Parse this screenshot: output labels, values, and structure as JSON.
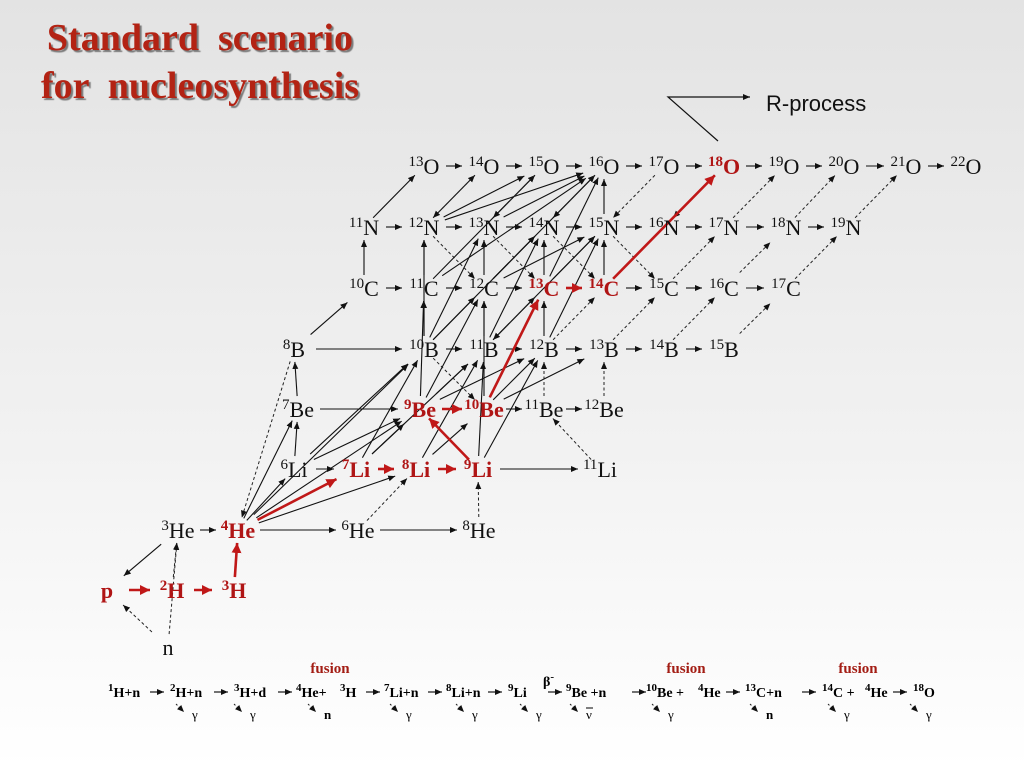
{
  "title": {
    "line1": "Standard  scenario",
    "line2": "for  nucleosynthesis"
  },
  "r_process_label": "R-process",
  "nuclides": [
    {
      "mass": "13",
      "sym": "O",
      "red": false
    },
    {
      "mass": "14",
      "sym": "O",
      "red": false
    },
    {
      "mass": "15",
      "sym": "O",
      "red": false
    },
    {
      "mass": "16",
      "sym": "O",
      "red": false
    },
    {
      "mass": "17",
      "sym": "O",
      "red": false
    },
    {
      "mass": "18",
      "sym": "O",
      "red": true
    },
    {
      "mass": "19",
      "sym": "O",
      "red": false
    },
    {
      "mass": "20",
      "sym": "O",
      "red": false
    },
    {
      "mass": "21",
      "sym": "O",
      "red": false
    },
    {
      "mass": "22",
      "sym": "O",
      "red": false
    },
    {
      "mass": "11",
      "sym": "N",
      "red": false
    },
    {
      "mass": "12",
      "sym": "N",
      "red": false
    },
    {
      "mass": "13",
      "sym": "N",
      "red": false
    },
    {
      "mass": "14",
      "sym": "N",
      "red": false
    },
    {
      "mass": "15",
      "sym": "N",
      "red": false
    },
    {
      "mass": "16",
      "sym": "N",
      "red": false
    },
    {
      "mass": "17",
      "sym": "N",
      "red": false
    },
    {
      "mass": "18",
      "sym": "N",
      "red": false
    },
    {
      "mass": "19",
      "sym": "N",
      "red": false
    },
    {
      "mass": "10",
      "sym": "C",
      "red": false
    },
    {
      "mass": "11",
      "sym": "C",
      "red": false
    },
    {
      "mass": "12",
      "sym": "C",
      "red": false
    },
    {
      "mass": "13",
      "sym": "C",
      "red": true
    },
    {
      "mass": "14",
      "sym": "C",
      "red": true
    },
    {
      "mass": "15",
      "sym": "C",
      "red": false
    },
    {
      "mass": "16",
      "sym": "C",
      "red": false
    },
    {
      "mass": "17",
      "sym": "C",
      "red": false
    },
    {
      "mass": "8",
      "sym": "B",
      "red": false
    },
    {
      "mass": "10",
      "sym": "B",
      "red": false
    },
    {
      "mass": "11",
      "sym": "B",
      "red": false
    },
    {
      "mass": "12",
      "sym": "B",
      "red": false
    },
    {
      "mass": "13",
      "sym": "B",
      "red": false
    },
    {
      "mass": "14",
      "sym": "B",
      "red": false
    },
    {
      "mass": "15",
      "sym": "B",
      "red": false
    },
    {
      "mass": "7",
      "sym": "Be",
      "red": false
    },
    {
      "mass": "9",
      "sym": "Be",
      "red": true
    },
    {
      "mass": "10",
      "sym": "Be",
      "red": true
    },
    {
      "mass": "11",
      "sym": "Be",
      "red": false
    },
    {
      "mass": "12",
      "sym": "Be",
      "red": false
    },
    {
      "mass": "6",
      "sym": "Li",
      "red": false
    },
    {
      "mass": "7",
      "sym": "Li",
      "red": true
    },
    {
      "mass": "8",
      "sym": "Li",
      "red": true
    },
    {
      "mass": "9",
      "sym": "Li",
      "red": true
    },
    {
      "mass": "11",
      "sym": "Li",
      "red": false
    },
    {
      "mass": "3",
      "sym": "He",
      "red": false
    },
    {
      "mass": "4",
      "sym": "He",
      "red": true
    },
    {
      "mass": "6",
      "sym": "He",
      "red": false
    },
    {
      "mass": "8",
      "sym": "He",
      "red": false
    },
    {
      "mass": "",
      "sym": "p",
      "red": true
    },
    {
      "mass": "2",
      "sym": "H",
      "red": true
    },
    {
      "mass": "3",
      "sym": "H",
      "red": true
    },
    {
      "mass": "",
      "sym": "n",
      "red": false
    }
  ],
  "chain": {
    "fusion_label": "fusion",
    "beta_label": "β",
    "beta_sign": "-",
    "products": [
      "γ",
      "γ",
      "n",
      "γ",
      "γ",
      "γ",
      "ν",
      "γ",
      "n",
      "γ",
      "γ"
    ],
    "segments": [
      {
        "m": "1",
        "t": "H+n"
      },
      {
        "m": "2",
        "t": "H+n"
      },
      {
        "m": "3",
        "t": "H+d"
      },
      {
        "m": "4",
        "t": "He+"
      },
      {
        "m": "3",
        "t": "H"
      },
      {
        "m": "7",
        "t": "Li+n"
      },
      {
        "m": "8",
        "t": "Li+n"
      },
      {
        "m": "9",
        "t": "Li"
      },
      {
        "m": "9",
        "t": "Be +n"
      },
      {
        "m": "10",
        "t": "Be + "
      },
      {
        "m": "4",
        "t": "He"
      },
      {
        "m": "13",
        "t": "C+n"
      },
      {
        "m": "14",
        "t": "C +"
      },
      {
        "m": "4",
        "t": "He"
      },
      {
        "m": "18",
        "t": "O"
      }
    ]
  },
  "colors": {
    "accent_red": "#b01515",
    "title_red": "#b32314",
    "ink": "#111111"
  }
}
